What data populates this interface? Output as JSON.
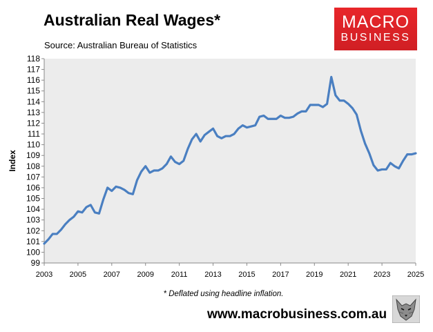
{
  "header": {
    "title": "Australian Real Wages*",
    "subtitle": "Source: Australian Bureau of Statistics"
  },
  "logo": {
    "line1": "MACRO",
    "line2": "BUSINESS"
  },
  "footer": {
    "footnote": "* Deflated using headline inflation.",
    "website": "www.macrobusiness.com.au"
  },
  "icons": {
    "mascot": "wolf-icon"
  },
  "colors": {
    "line": "#4a7fc1",
    "plot_bg": "#ececec",
    "logo_bg": "#e8262a"
  },
  "chart_data": {
    "type": "line",
    "ylabel": "Index",
    "xlabel": "",
    "xlim": [
      2003,
      2025
    ],
    "ylim": [
      99,
      118
    ],
    "xticks": [
      "2003",
      "2005",
      "2007",
      "2009",
      "2011",
      "2013",
      "2015",
      "2017",
      "2019",
      "2021",
      "2023",
      "2025"
    ],
    "yticks": [
      "99",
      "100",
      "101",
      "102",
      "103",
      "104",
      "105",
      "106",
      "107",
      "108",
      "109",
      "110",
      "111",
      "112",
      "113",
      "114",
      "115",
      "116",
      "117",
      "118"
    ],
    "grid": false,
    "series": [
      {
        "x": [
          2003.0,
          2003.25,
          2003.5,
          2003.75,
          2004.0,
          2004.25,
          2004.5,
          2004.75,
          2005.0,
          2005.25,
          2005.5,
          2005.75,
          2006.0,
          2006.25,
          2006.5,
          2006.75,
          2007.0,
          2007.25,
          2007.5,
          2007.75,
          2008.0,
          2008.25,
          2008.5,
          2008.75,
          2009.0,
          2009.25,
          2009.5,
          2009.75,
          2010.0,
          2010.25,
          2010.5,
          2010.75,
          2011.0,
          2011.25,
          2011.5,
          2011.75,
          2012.0,
          2012.25,
          2012.5,
          2012.75,
          2013.0,
          2013.25,
          2013.5,
          2013.75,
          2014.0,
          2014.25,
          2014.5,
          2014.75,
          2015.0,
          2015.25,
          2015.5,
          2015.75,
          2016.0,
          2016.25,
          2016.5,
          2016.75,
          2017.0,
          2017.25,
          2017.5,
          2017.75,
          2018.0,
          2018.25,
          2018.5,
          2018.75,
          2019.0,
          2019.25,
          2019.5,
          2019.75,
          2020.0,
          2020.25,
          2020.5,
          2020.75,
          2021.0,
          2021.25,
          2021.5,
          2021.75,
          2022.0,
          2022.25,
          2022.5,
          2022.75,
          2023.0,
          2023.25,
          2023.5,
          2023.75,
          2024.0,
          2024.25,
          2024.5,
          2024.75,
          2025.0
        ],
        "values": [
          100.8,
          101.2,
          101.7,
          101.7,
          102.1,
          102.6,
          103.0,
          103.3,
          103.8,
          103.7,
          104.2,
          104.4,
          103.7,
          103.6,
          104.9,
          106.0,
          105.7,
          106.1,
          106.0,
          105.8,
          105.5,
          105.4,
          106.7,
          107.5,
          108.0,
          107.4,
          107.6,
          107.6,
          107.8,
          108.2,
          108.9,
          108.4,
          108.2,
          108.5,
          109.6,
          110.5,
          111.0,
          110.3,
          110.9,
          111.2,
          111.5,
          110.8,
          110.6,
          110.8,
          110.8,
          111.0,
          111.5,
          111.8,
          111.6,
          111.7,
          111.8,
          112.6,
          112.7,
          112.4,
          112.4,
          112.4,
          112.7,
          112.5,
          112.5,
          112.6,
          112.9,
          113.1,
          113.1,
          113.7,
          113.7,
          113.7,
          113.5,
          113.8,
          116.3,
          114.6,
          114.1,
          114.1,
          113.8,
          113.4,
          112.8,
          111.3,
          110.1,
          109.2,
          108.1,
          107.6,
          107.7,
          107.7,
          108.3,
          108.0,
          107.8,
          108.5,
          109.1,
          109.1,
          109.2
        ]
      }
    ]
  }
}
